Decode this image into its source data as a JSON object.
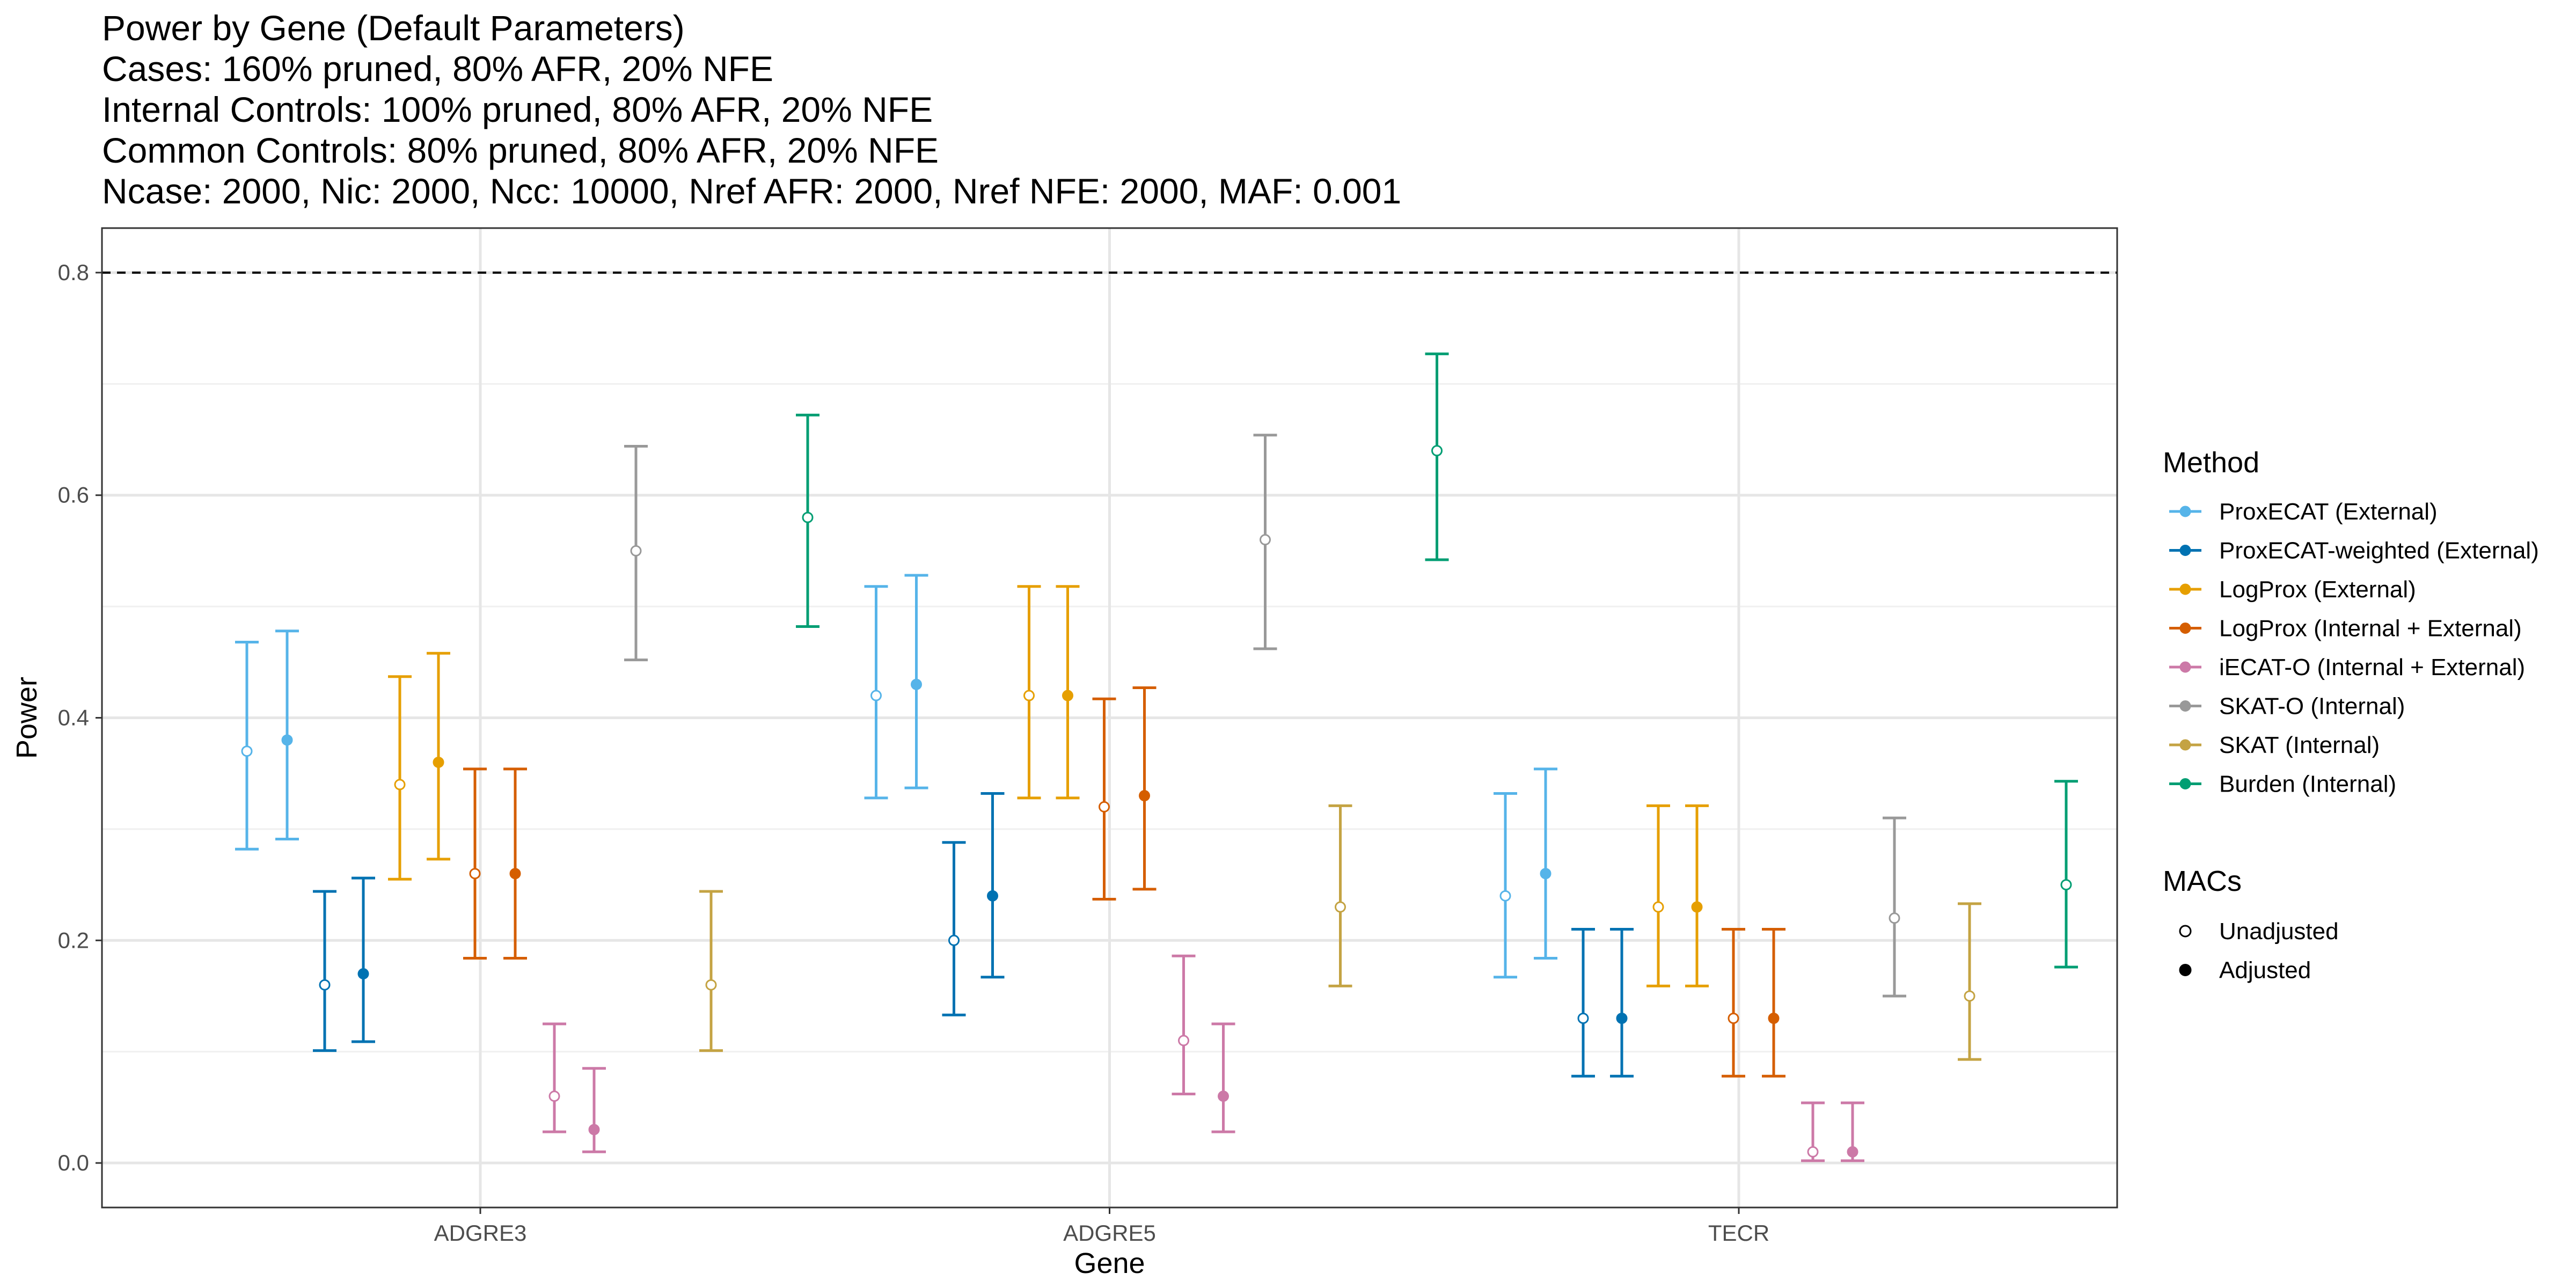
{
  "title_lines": [
    "Power by Gene (Default Parameters)",
    "Cases: 160% pruned, 80% AFR, 20% NFE",
    "Internal Controls: 100% pruned, 80% AFR, 20% NFE",
    "Common Controls: 80% pruned, 80% AFR, 20% NFE",
    "Ncase: 2000, Nic: 2000, Ncc: 10000, Nref AFR: 2000, Nref NFE: 2000, MAF: 0.001"
  ],
  "chart_data": {
    "type": "scatter",
    "subtype": "point with error bars (dodged)",
    "xlabel": "Gene",
    "ylabel": "Power",
    "categories": [
      "ADGRE3",
      "ADGRE5",
      "TECR"
    ],
    "ylim": [
      -0.04,
      0.84
    ],
    "yticks": [
      0.0,
      0.2,
      0.4,
      0.6,
      0.8
    ],
    "ytick_labels": [
      "0.0",
      "0.2",
      "0.4",
      "0.6",
      "0.8"
    ],
    "reference_line": {
      "y": 0.8,
      "style": "dashed"
    },
    "grid": true,
    "legend_position": "right",
    "legend_method_title": "Method",
    "legend_macs_title": "MACs",
    "macs": [
      {
        "name": "Unadjusted",
        "marker": "open-circle"
      },
      {
        "name": "Adjusted",
        "marker": "filled-circle"
      }
    ],
    "series": [
      {
        "name": "ProxECAT (External)",
        "color": "#56B4E9",
        "unadjusted": {
          "y": [
            0.37,
            0.42,
            0.24
          ],
          "lower": [
            0.282,
            0.328,
            0.167
          ],
          "upper": [
            0.468,
            0.518,
            0.332
          ]
        },
        "adjusted": {
          "y": [
            0.38,
            0.43,
            0.26
          ],
          "lower": [
            0.291,
            0.337,
            0.184
          ],
          "upper": [
            0.478,
            0.528,
            0.354
          ]
        }
      },
      {
        "name": "ProxECAT-weighted (External)",
        "color": "#0072B2",
        "unadjusted": {
          "y": [
            0.16,
            0.2,
            0.13
          ],
          "lower": [
            0.101,
            0.133,
            0.078
          ],
          "upper": [
            0.244,
            0.288,
            0.21
          ]
        },
        "adjusted": {
          "y": [
            0.17,
            0.24,
            0.13
          ],
          "lower": [
            0.109,
            0.167,
            0.078
          ],
          "upper": [
            0.256,
            0.332,
            0.21
          ]
        }
      },
      {
        "name": "LogProx (External)",
        "color": "#E69F00",
        "unadjusted": {
          "y": [
            0.34,
            0.42,
            0.23
          ],
          "lower": [
            0.255,
            0.328,
            0.159
          ],
          "upper": [
            0.437,
            0.518,
            0.321
          ]
        },
        "adjusted": {
          "y": [
            0.36,
            0.42,
            0.23
          ],
          "lower": [
            0.273,
            0.328,
            0.159
          ],
          "upper": [
            0.458,
            0.518,
            0.321
          ]
        }
      },
      {
        "name": "LogProx (Internal + External)",
        "color": "#D55E00",
        "unadjusted": {
          "y": [
            0.26,
            0.32,
            0.13
          ],
          "lower": [
            0.184,
            0.237,
            0.078
          ],
          "upper": [
            0.354,
            0.417,
            0.21
          ]
        },
        "adjusted": {
          "y": [
            0.26,
            0.33,
            0.13
          ],
          "lower": [
            0.184,
            0.246,
            0.078
          ],
          "upper": [
            0.354,
            0.427,
            0.21
          ]
        }
      },
      {
        "name": "iECAT-O (Internal + External)",
        "color": "#CC79A7",
        "unadjusted": {
          "y": [
            0.06,
            0.11,
            0.01
          ],
          "lower": [
            0.028,
            0.062,
            0.002
          ],
          "upper": [
            0.125,
            0.186,
            0.054
          ]
        },
        "adjusted": {
          "y": [
            0.03,
            0.06,
            0.01
          ],
          "lower": [
            0.01,
            0.028,
            0.002
          ],
          "upper": [
            0.085,
            0.125,
            0.054
          ]
        }
      },
      {
        "name": "SKAT-O (Internal)",
        "color": "#999999",
        "unadjusted": {
          "y": [
            0.55,
            0.56,
            0.22
          ],
          "lower": [
            0.452,
            0.462,
            0.15
          ],
          "upper": [
            0.644,
            0.654,
            0.31
          ]
        },
        "adjusted": null
      },
      {
        "name": "SKAT (Internal)",
        "color": "#C4A343",
        "unadjusted": {
          "y": [
            0.16,
            0.23,
            0.15
          ],
          "lower": [
            0.101,
            0.159,
            0.093
          ],
          "upper": [
            0.244,
            0.321,
            0.233
          ]
        },
        "adjusted": null
      },
      {
        "name": "Burden (Internal)",
        "color": "#009E73",
        "unadjusted": {
          "y": [
            0.58,
            0.64,
            0.25
          ],
          "lower": [
            0.482,
            0.542,
            0.176
          ],
          "upper": [
            0.672,
            0.727,
            0.343
          ]
        },
        "adjusted": null
      }
    ]
  }
}
